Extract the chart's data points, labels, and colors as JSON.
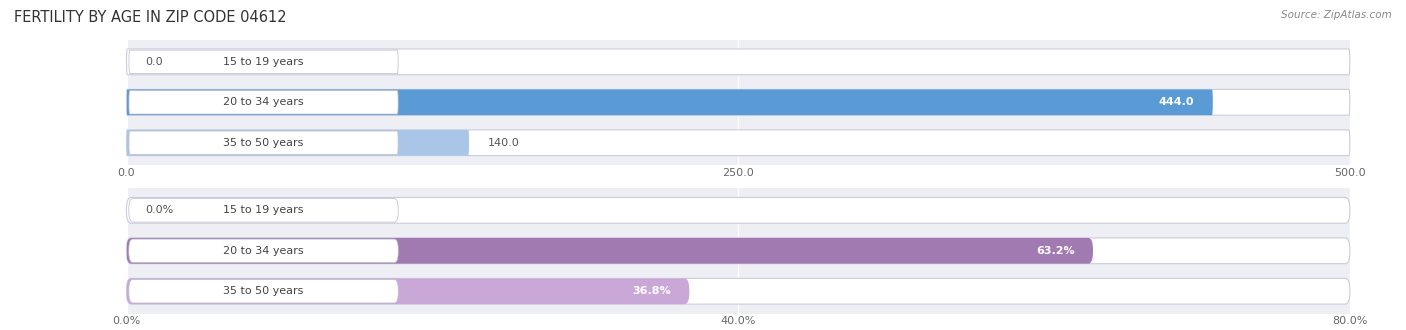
{
  "title": "FERTILITY BY AGE IN ZIP CODE 04612",
  "source": "Source: ZipAtlas.com",
  "top_chart": {
    "categories": [
      "15 to 19 years",
      "20 to 34 years",
      "35 to 50 years"
    ],
    "values": [
      0.0,
      444.0,
      140.0
    ],
    "bar_color_dark": "#5b9bd5",
    "bar_color_light": "#a9c6e8",
    "label_pill_color": "#dce8f5",
    "xlim": [
      0,
      500
    ],
    "xticks": [
      0.0,
      250.0,
      500.0
    ],
    "xtick_labels": [
      "0.0",
      "250.0",
      "500.0"
    ],
    "value_labels": [
      "0.0",
      "444.0",
      "140.0"
    ]
  },
  "bottom_chart": {
    "categories": [
      "15 to 19 years",
      "20 to 34 years",
      "35 to 50 years"
    ],
    "values": [
      0.0,
      63.2,
      36.8
    ],
    "bar_color_dark": "#a07ab0",
    "bar_color_light": "#c9a8d8",
    "label_pill_color": "#e8d8f0",
    "xlim": [
      0,
      80
    ],
    "xticks": [
      0.0,
      40.0,
      80.0
    ],
    "xtick_labels": [
      "0.0%",
      "40.0%",
      "80.0%"
    ],
    "value_labels": [
      "0.0%",
      "63.2%",
      "36.8%"
    ]
  },
  "bg_color": "#eeeef5",
  "label_color": "#444444",
  "value_color_inside": "#ffffff",
  "value_color_outside": "#555555",
  "title_color": "#333333",
  "source_color": "#888888",
  "bar_height": 0.62,
  "label_fontsize": 8.0,
  "title_fontsize": 10.5,
  "source_fontsize": 7.5
}
